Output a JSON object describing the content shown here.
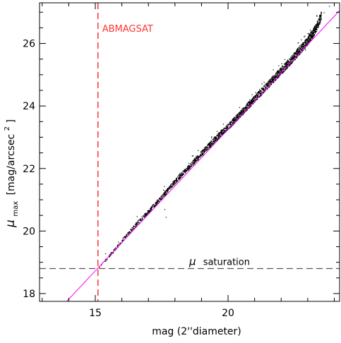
{
  "chart_data": {
    "type": "scatter",
    "title": "",
    "xlabel": "mag (2''diameter)",
    "ylabel_main": "μ",
    "ylabel_sub": "max",
    "ylabel_rest": "[mag/arcsec",
    "ylabel_sup": "2",
    "ylabel_close": "]",
    "xlim": [
      12.9,
      24.2
    ],
    "ylim": [
      17.75,
      27.3
    ],
    "x_ticks_major": [
      15,
      20
    ],
    "x_ticks_minor_step": 1,
    "y_ticks_major": [
      18,
      20,
      22,
      24,
      26
    ],
    "y_ticks_minor_step": 0.5,
    "grid": false,
    "colors": {
      "points": "#000000",
      "fit_line": "#ff00ff",
      "abmagsat_line": "#ff3333",
      "saturation_line": "#555555"
    },
    "abmagsat": {
      "label": "ABMAGSAT",
      "x": 15.1
    },
    "mu_saturation": {
      "symbol": "μ",
      "label": "saturation",
      "y": 18.8
    },
    "fit_line": {
      "slope": 0.905,
      "intercept": 5.15
    },
    "point_cloud_trend": [
      [
        15.1,
        18.8
      ],
      [
        15.5,
        19.2
      ],
      [
        16.0,
        19.7
      ],
      [
        16.5,
        20.2
      ],
      [
        17.0,
        20.65
      ],
      [
        17.5,
        21.1
      ],
      [
        18.0,
        21.6
      ],
      [
        18.5,
        22.05
      ],
      [
        19.0,
        22.5
      ],
      [
        19.5,
        22.95
      ],
      [
        20.0,
        23.35
      ],
      [
        20.5,
        23.8
      ],
      [
        21.0,
        24.25
      ],
      [
        21.5,
        24.7
      ],
      [
        22.0,
        25.15
      ],
      [
        22.5,
        25.6
      ],
      [
        23.0,
        26.1
      ],
      [
        23.3,
        26.5
      ],
      [
        23.5,
        26.9
      ]
    ],
    "outliers": [
      [
        17.6,
        20.7
      ],
      [
        17.65,
        20.45
      ],
      [
        22.9,
        25.8
      ],
      [
        23.6,
        27.0
      ],
      [
        23.8,
        27.2
      ]
    ]
  }
}
